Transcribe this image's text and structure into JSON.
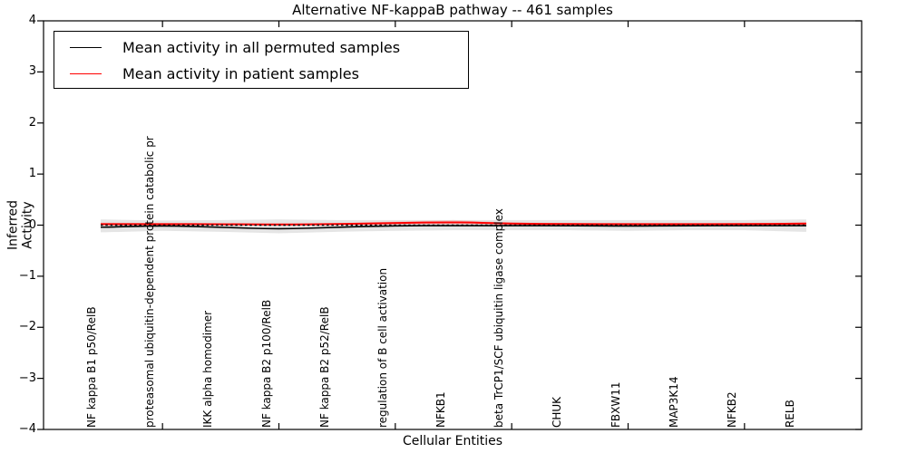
{
  "title": "Alternative NF-kappaB pathway -- 461 samples",
  "axes": {
    "ylabel": "Inferred Activity",
    "xlabel": "Cellular Entities",
    "ytick_labels": [
      "4",
      "3",
      "2",
      "1",
      "0",
      "−1",
      "−2",
      "−3",
      "−4"
    ]
  },
  "legend": {
    "items": [
      {
        "label": "Mean activity in all permuted samples",
        "color": "#000000"
      },
      {
        "label": "Mean activity in patient samples",
        "color": "#ff0000"
      }
    ]
  },
  "chart_data": {
    "type": "line",
    "title": "Alternative NF-kappaB pathway -- 461 samples",
    "xlabel": "Cellular Entities",
    "ylabel": "Inferred Activity",
    "ylim": [
      -4,
      4
    ],
    "yticks": [
      4,
      3,
      2,
      1,
      0,
      -1,
      -2,
      -3,
      -4
    ],
    "grid": false,
    "legend_position": "upper left",
    "categories": [
      "NF kappa B1 p50/RelB",
      "proteasomal ubiquitin-dependent protein catabolic pr",
      "IKK alpha homodimer",
      "NF kappa B2 p100/RelB",
      "NF kappa B2 p52/RelB",
      "regulation of B cell activation",
      "NFKB1",
      "beta TrCP1/SCF ubiquitin ligase complex",
      "CHUK",
      "FBXW11",
      "MAP3K14",
      "NFKB2",
      "RELB"
    ],
    "series": [
      {
        "name": "Mean activity in all permuted samples",
        "color": "#000000",
        "style": "solid",
        "values": [
          -0.04,
          -0.01,
          -0.04,
          -0.08,
          -0.04,
          -0.01,
          -0.01,
          -0.01,
          -0.01,
          -0.02,
          -0.01,
          -0.01,
          -0.01
        ]
      },
      {
        "name": "Mean activity in patient samples",
        "color": "#ff0000",
        "style": "solid",
        "values": [
          0.02,
          0.02,
          0.02,
          0.01,
          0.02,
          0.04,
          0.06,
          0.03,
          0.02,
          0.02,
          0.02,
          0.02,
          0.03
        ]
      }
    ],
    "bands": [
      {
        "name": "permuted-confidence-band",
        "color": "#000000",
        "opacity": 0.1,
        "upper": [
          0.11,
          0.09,
          0.1,
          0.11,
          0.1,
          0.1,
          0.1,
          0.1,
          0.1,
          0.1,
          0.1,
          0.1,
          0.11
        ],
        "lower": [
          -0.14,
          -0.11,
          -0.13,
          -0.16,
          -0.13,
          -0.11,
          -0.1,
          -0.1,
          -0.1,
          -0.11,
          -0.1,
          -0.1,
          -0.13
        ]
      },
      {
        "name": "patient-confidence-band",
        "color": "#ff0000",
        "opacity": 0.13,
        "upper": [
          0.05,
          0.04,
          0.04,
          0.03,
          0.04,
          0.07,
          0.1,
          0.05,
          0.04,
          0.04,
          0.04,
          0.04,
          0.05
        ],
        "lower": [
          -0.01,
          0.0,
          0.0,
          -0.01,
          0.0,
          0.01,
          0.02,
          0.01,
          0.0,
          0.0,
          0.0,
          0.0,
          0.01
        ]
      }
    ],
    "reference_line": {
      "y": 0,
      "style": "dotted",
      "color": "#000000"
    }
  }
}
